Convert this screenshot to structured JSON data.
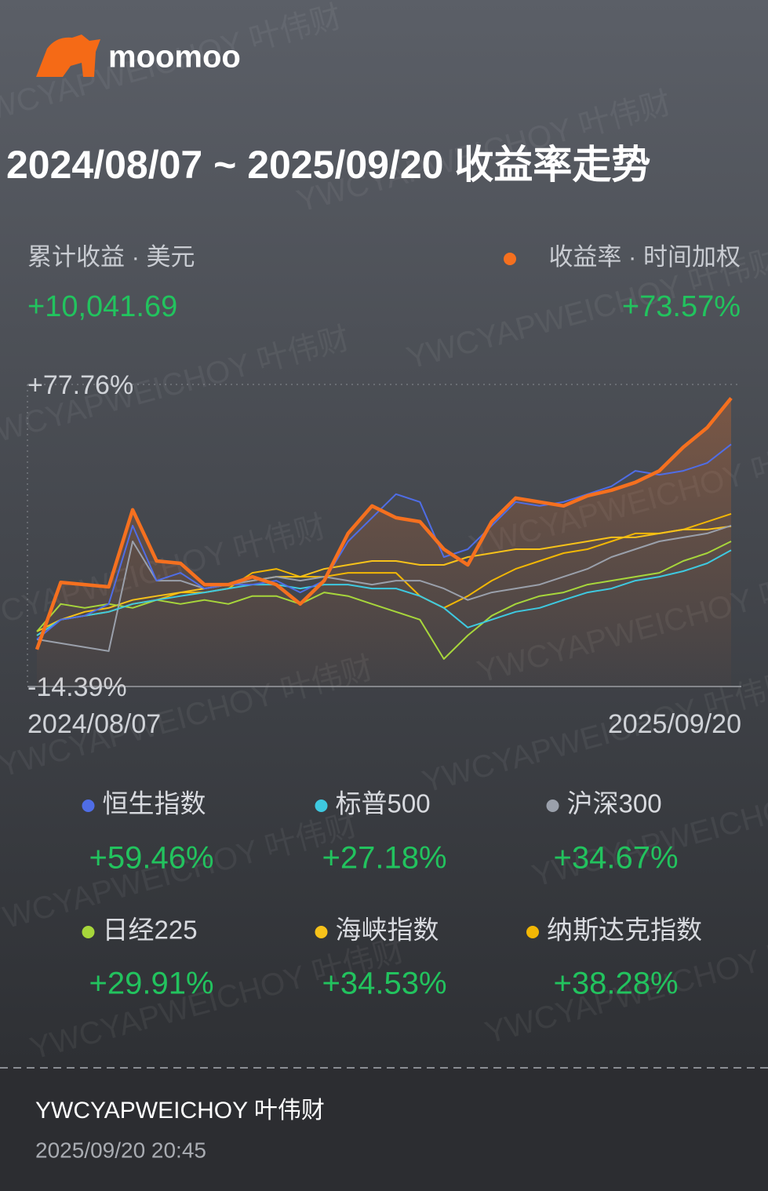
{
  "header": {
    "logo": "moomoo",
    "title": "2024/08/07 ~ 2025/09/20 收益率走势"
  },
  "summary": {
    "label": "累计收益 · 美元",
    "value": "+10,041.69"
  },
  "chart_data": {
    "type": "line",
    "categories": [
      "2024/08/07",
      null,
      null,
      null,
      null,
      null,
      null,
      null,
      null,
      null,
      null,
      null,
      null,
      null,
      null,
      null,
      null,
      null,
      null,
      null,
      null,
      null,
      null,
      null,
      null,
      null,
      null,
      null,
      null,
      "2025/09/20"
    ],
    "ylim": [
      -14.39,
      77.76
    ],
    "yticks": [
      {
        "value": 77.76,
        "label": "+77.76%"
      },
      {
        "value": -14.39,
        "label": "-14.39%"
      }
    ],
    "series": [
      {
        "name": "收益率 · 时间加权",
        "color": "#f5701f",
        "return": "+73.57%",
        "values": [
          -3.1,
          17.4,
          16.7,
          16.0,
          39.5,
          23.9,
          23.2,
          16.7,
          16.7,
          19.1,
          16.7,
          10.8,
          17.9,
          32.3,
          40.7,
          37.1,
          35.9,
          27.5,
          22.7,
          35.9,
          43.1,
          41.9,
          40.7,
          43.8,
          45.5,
          47.9,
          51.4,
          58.6,
          64.6,
          73.6
        ]
      },
      {
        "name": "恒生指数",
        "color": "#4f6de6",
        "return": "+59.46%",
        "values": [
          0.0,
          6.0,
          7.2,
          10.8,
          34.7,
          17.9,
          20.3,
          15.5,
          16.7,
          16.7,
          17.9,
          14.3,
          17.9,
          29.9,
          37.1,
          44.3,
          41.9,
          25.1,
          27.5,
          34.7,
          41.9,
          40.7,
          41.9,
          44.3,
          46.7,
          51.4,
          50.2,
          51.4,
          53.8,
          59.5
        ]
      },
      {
        "name": "标普500",
        "color": "#3ec9e0",
        "return": "+27.18%",
        "values": [
          1.2,
          6.0,
          7.2,
          8.4,
          10.8,
          12.0,
          13.2,
          14.3,
          15.5,
          16.7,
          16.7,
          15.5,
          16.7,
          16.7,
          15.5,
          15.5,
          13.2,
          9.6,
          3.6,
          6.0,
          8.4,
          9.6,
          12.0,
          14.3,
          15.5,
          17.9,
          19.1,
          20.8,
          23.2,
          27.2
        ]
      },
      {
        "name": "沪深300",
        "color": "#9aa0ab",
        "return": "+34.67%",
        "values": [
          0.0,
          -1.2,
          -2.4,
          -3.6,
          29.9,
          17.9,
          17.9,
          15.5,
          16.7,
          17.9,
          19.1,
          17.9,
          19.1,
          17.9,
          16.7,
          17.9,
          17.9,
          15.5,
          12.0,
          14.3,
          15.5,
          16.7,
          19.1,
          21.5,
          25.1,
          27.5,
          29.9,
          31.1,
          32.3,
          34.7
        ]
      },
      {
        "name": "日经225",
        "color": "#a7d63b",
        "return": "+29.91%",
        "values": [
          2.4,
          10.8,
          9.6,
          10.8,
          9.6,
          12.0,
          10.8,
          12.0,
          10.8,
          13.2,
          13.2,
          10.8,
          14.3,
          13.2,
          10.8,
          8.4,
          6.0,
          -6.0,
          1.2,
          7.2,
          10.8,
          13.2,
          14.3,
          16.7,
          17.9,
          19.1,
          20.3,
          23.9,
          26.3,
          29.9
        ]
      },
      {
        "name": "海峡指数",
        "color": "#f7c21a",
        "return": "+34.53%",
        "values": [
          2.4,
          6.0,
          8.4,
          9.6,
          12.0,
          13.2,
          14.3,
          15.5,
          16.7,
          17.9,
          19.1,
          19.1,
          21.5,
          22.7,
          23.9,
          23.9,
          22.7,
          22.7,
          25.1,
          26.3,
          27.5,
          27.5,
          28.7,
          29.9,
          31.1,
          31.1,
          32.3,
          33.5,
          33.5,
          34.5
        ]
      },
      {
        "name": "纳斯达克指数",
        "color": "#f2b705",
        "return": "+38.28%",
        "values": [
          1.2,
          6.0,
          7.2,
          8.4,
          10.8,
          12.0,
          14.3,
          14.3,
          15.5,
          20.3,
          21.5,
          19.1,
          19.1,
          20.3,
          20.3,
          20.3,
          13.2,
          9.6,
          13.2,
          17.9,
          21.5,
          23.9,
          26.3,
          27.5,
          29.9,
          32.3,
          32.3,
          33.5,
          35.9,
          38.3
        ]
      }
    ]
  },
  "footer": {
    "user": "YWCYAPWEICHOY 叶伟财",
    "timestamp": "2025/09/20 20:45"
  },
  "watermark": "YWCYAPWEICHOY 叶伟财"
}
